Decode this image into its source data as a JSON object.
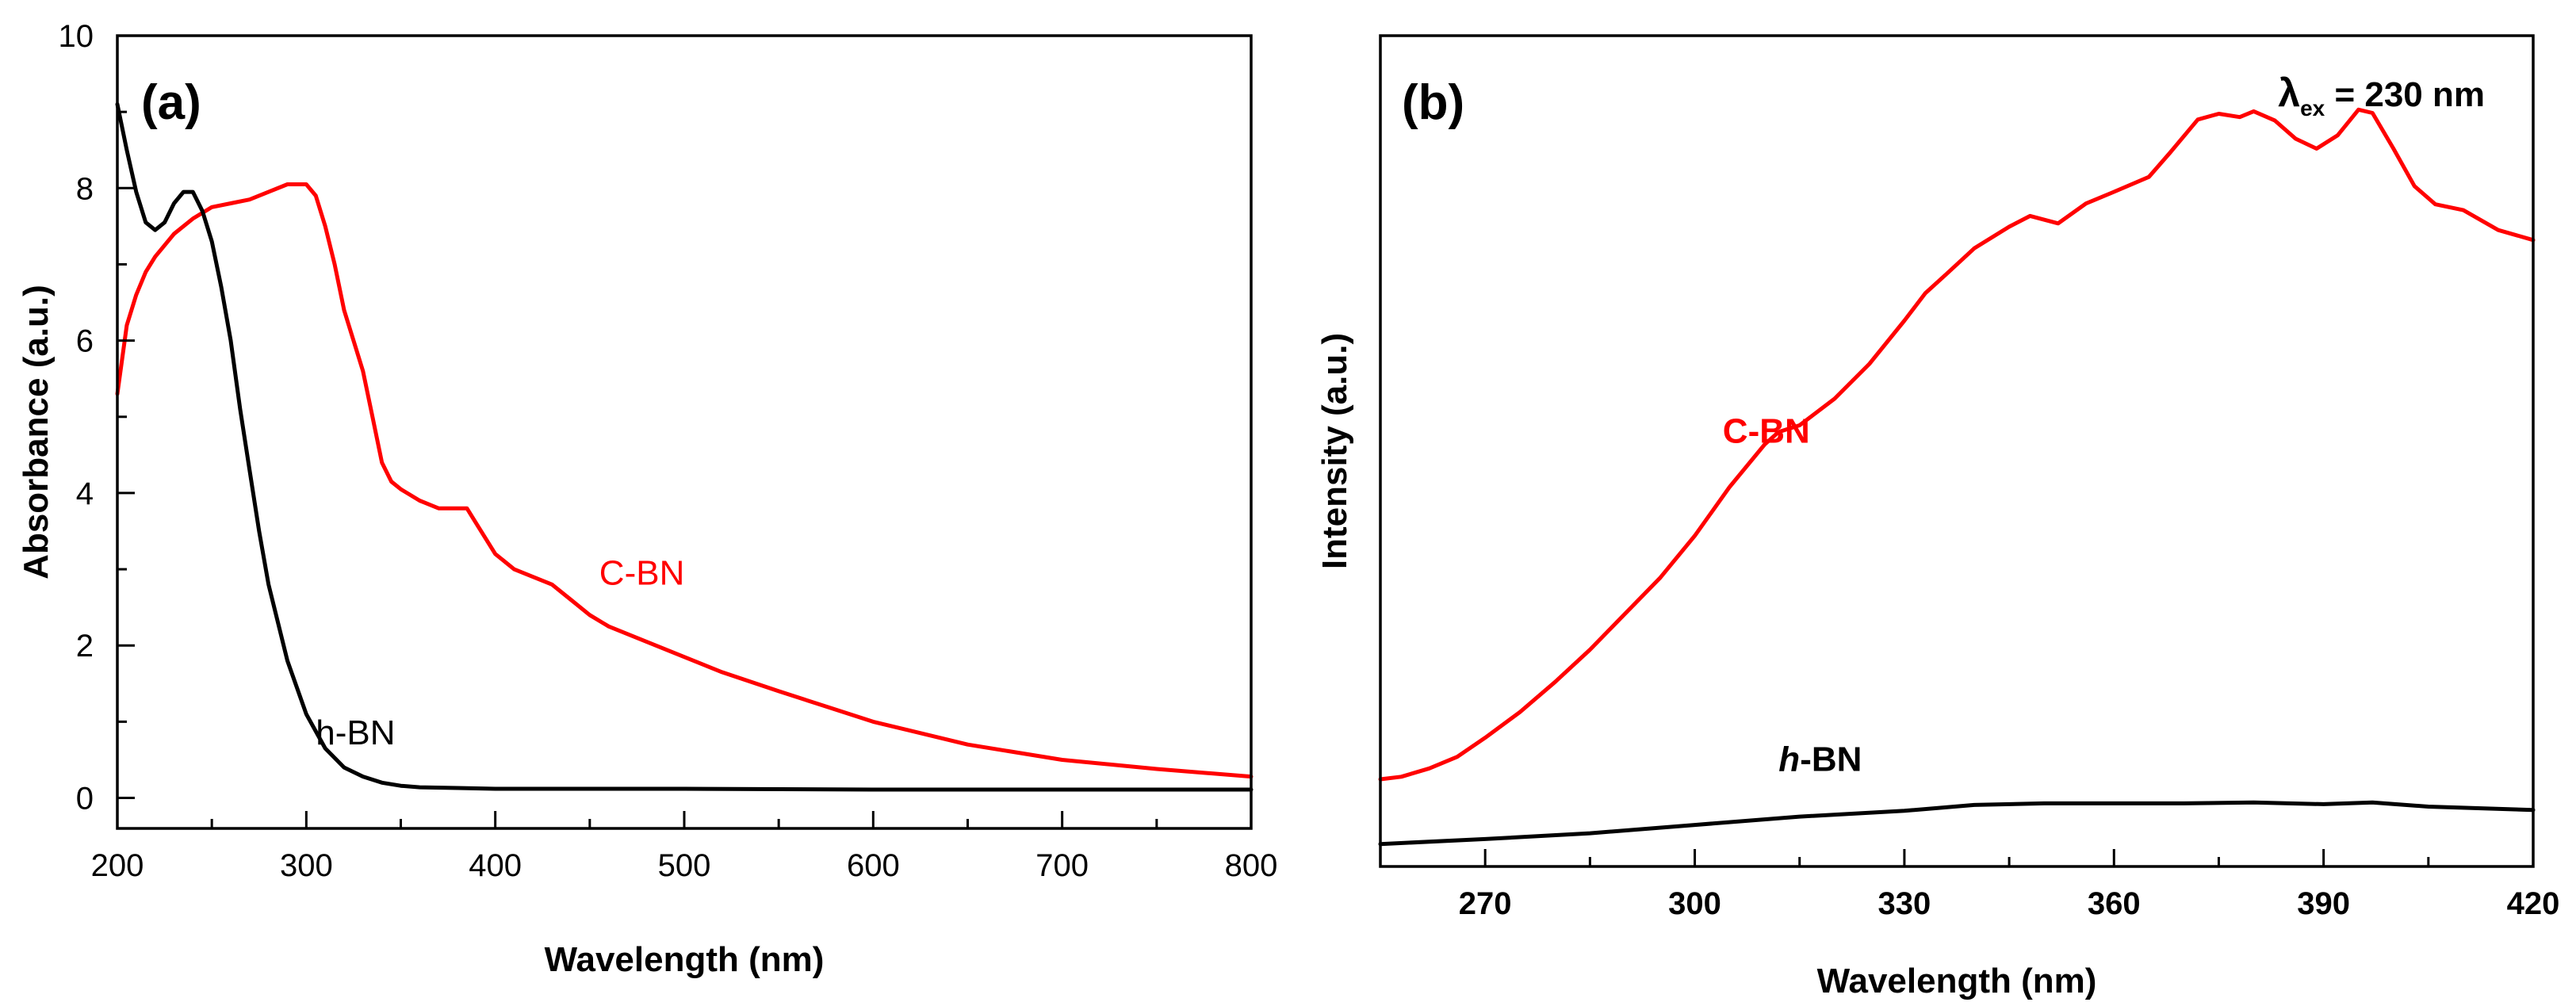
{
  "chart_data": [
    {
      "type": "line",
      "panel_label": "(a)",
      "xlabel": "Wavelength (nm)",
      "ylabel": "Absorbance (a.u.)",
      "xlim": [
        200,
        800
      ],
      "ylim": [
        -0.4,
        10
      ],
      "xticks": [
        200,
        300,
        400,
        500,
        600,
        700,
        800
      ],
      "xtick_labels": [
        "200",
        "300",
        "400",
        "500",
        "600",
        "700",
        "800"
      ],
      "yticks": [
        0,
        2,
        4,
        6,
        8,
        10
      ],
      "ytick_labels": [
        "0",
        "2",
        "4",
        "6",
        "8",
        "10"
      ],
      "grid": false,
      "series": [
        {
          "name": "C-BN",
          "color": "#ff0000",
          "label_at": [
            455,
            2.8
          ],
          "x": [
            200,
            205,
            210,
            215,
            220,
            230,
            240,
            250,
            260,
            270,
            280,
            290,
            300,
            305,
            310,
            315,
            320,
            325,
            330,
            335,
            340,
            345,
            350,
            360,
            370,
            380,
            385,
            390,
            400,
            410,
            420,
            430,
            440,
            450,
            460,
            480,
            500,
            520,
            550,
            600,
            650,
            700,
            750,
            800
          ],
          "y": [
            5.3,
            6.2,
            6.6,
            6.9,
            7.1,
            7.4,
            7.6,
            7.75,
            7.8,
            7.85,
            7.95,
            8.05,
            8.05,
            7.9,
            7.5,
            7.0,
            6.4,
            6.0,
            5.6,
            5.0,
            4.4,
            4.15,
            4.05,
            3.9,
            3.8,
            3.8,
            3.8,
            3.6,
            3.2,
            3.0,
            2.9,
            2.8,
            2.6,
            2.4,
            2.25,
            2.05,
            1.85,
            1.65,
            1.4,
            1.0,
            0.7,
            0.5,
            0.38,
            0.28
          ]
        },
        {
          "name": "h-BN",
          "color": "#000000",
          "label_at": [
            305,
            0.7
          ],
          "x": [
            200,
            205,
            210,
            215,
            220,
            225,
            230,
            235,
            240,
            245,
            250,
            255,
            260,
            265,
            270,
            275,
            280,
            290,
            300,
            310,
            320,
            330,
            340,
            350,
            360,
            380,
            400,
            500,
            600,
            700,
            800
          ],
          "y": [
            9.1,
            8.5,
            7.95,
            7.55,
            7.45,
            7.55,
            7.8,
            7.95,
            7.95,
            7.7,
            7.3,
            6.7,
            6.0,
            5.1,
            4.3,
            3.5,
            2.8,
            1.8,
            1.1,
            0.65,
            0.4,
            0.28,
            0.2,
            0.16,
            0.14,
            0.13,
            0.12,
            0.12,
            0.11,
            0.11,
            0.11
          ]
        }
      ]
    },
    {
      "type": "line",
      "panel_label": "(b)",
      "annotation": {
        "symbol": "λ",
        "subscript": "ex",
        "text": " = 230 nm"
      },
      "xlabel": "Wavelength (nm)",
      "ylabel": "Intensity (a.u.)",
      "xlim": [
        255,
        420
      ],
      "ylim": [
        0,
        100
      ],
      "xticks": [
        270,
        300,
        330,
        360,
        390,
        420
      ],
      "xtick_labels": [
        "270",
        "300",
        "330",
        "360",
        "390",
        "420"
      ],
      "minor_xticks": [
        255,
        285,
        315,
        345,
        375,
        405
      ],
      "yticks": [],
      "ytick_labels": [],
      "grid": false,
      "series": [
        {
          "name": "C-BN",
          "name_italic_part": "",
          "name_rest": "C-BN",
          "color": "#ff0000",
          "label_at": [
            304,
            51
          ],
          "x": [
            255,
            258,
            262,
            266,
            270,
            275,
            280,
            285,
            290,
            295,
            300,
            305,
            310,
            312,
            315,
            320,
            325,
            330,
            333,
            336,
            340,
            345,
            348,
            352,
            356,
            360,
            365,
            368,
            372,
            375,
            378,
            380,
            383,
            386,
            389,
            392,
            395,
            397,
            400,
            403,
            406,
            410,
            415,
            420
          ],
          "y": [
            10.5,
            10.8,
            11.8,
            13.2,
            15.5,
            18.6,
            22.2,
            26.1,
            30.4,
            34.7,
            39.8,
            45.7,
            50.8,
            52.3,
            53.1,
            56.3,
            60.5,
            65.7,
            69.0,
            71.3,
            74.4,
            77.0,
            78.3,
            77.4,
            79.8,
            81.2,
            83.0,
            85.9,
            89.9,
            90.6,
            90.2,
            90.9,
            89.8,
            87.6,
            86.4,
            88.0,
            91.1,
            90.7,
            86.4,
            81.9,
            79.7,
            79.0,
            76.6,
            75.4
          ]
        },
        {
          "name": "h-BN",
          "name_italic_part": "h",
          "name_rest": "-BN",
          "color": "#000000",
          "label_at": [
            312,
            11.5
          ],
          "x": [
            255,
            270,
            285,
            300,
            315,
            330,
            340,
            350,
            360,
            370,
            380,
            390,
            397,
            405,
            420
          ],
          "y": [
            2.7,
            3.3,
            4.0,
            5.0,
            6.0,
            6.7,
            7.4,
            7.6,
            7.6,
            7.6,
            7.7,
            7.5,
            7.7,
            7.2,
            6.8
          ]
        }
      ]
    }
  ]
}
